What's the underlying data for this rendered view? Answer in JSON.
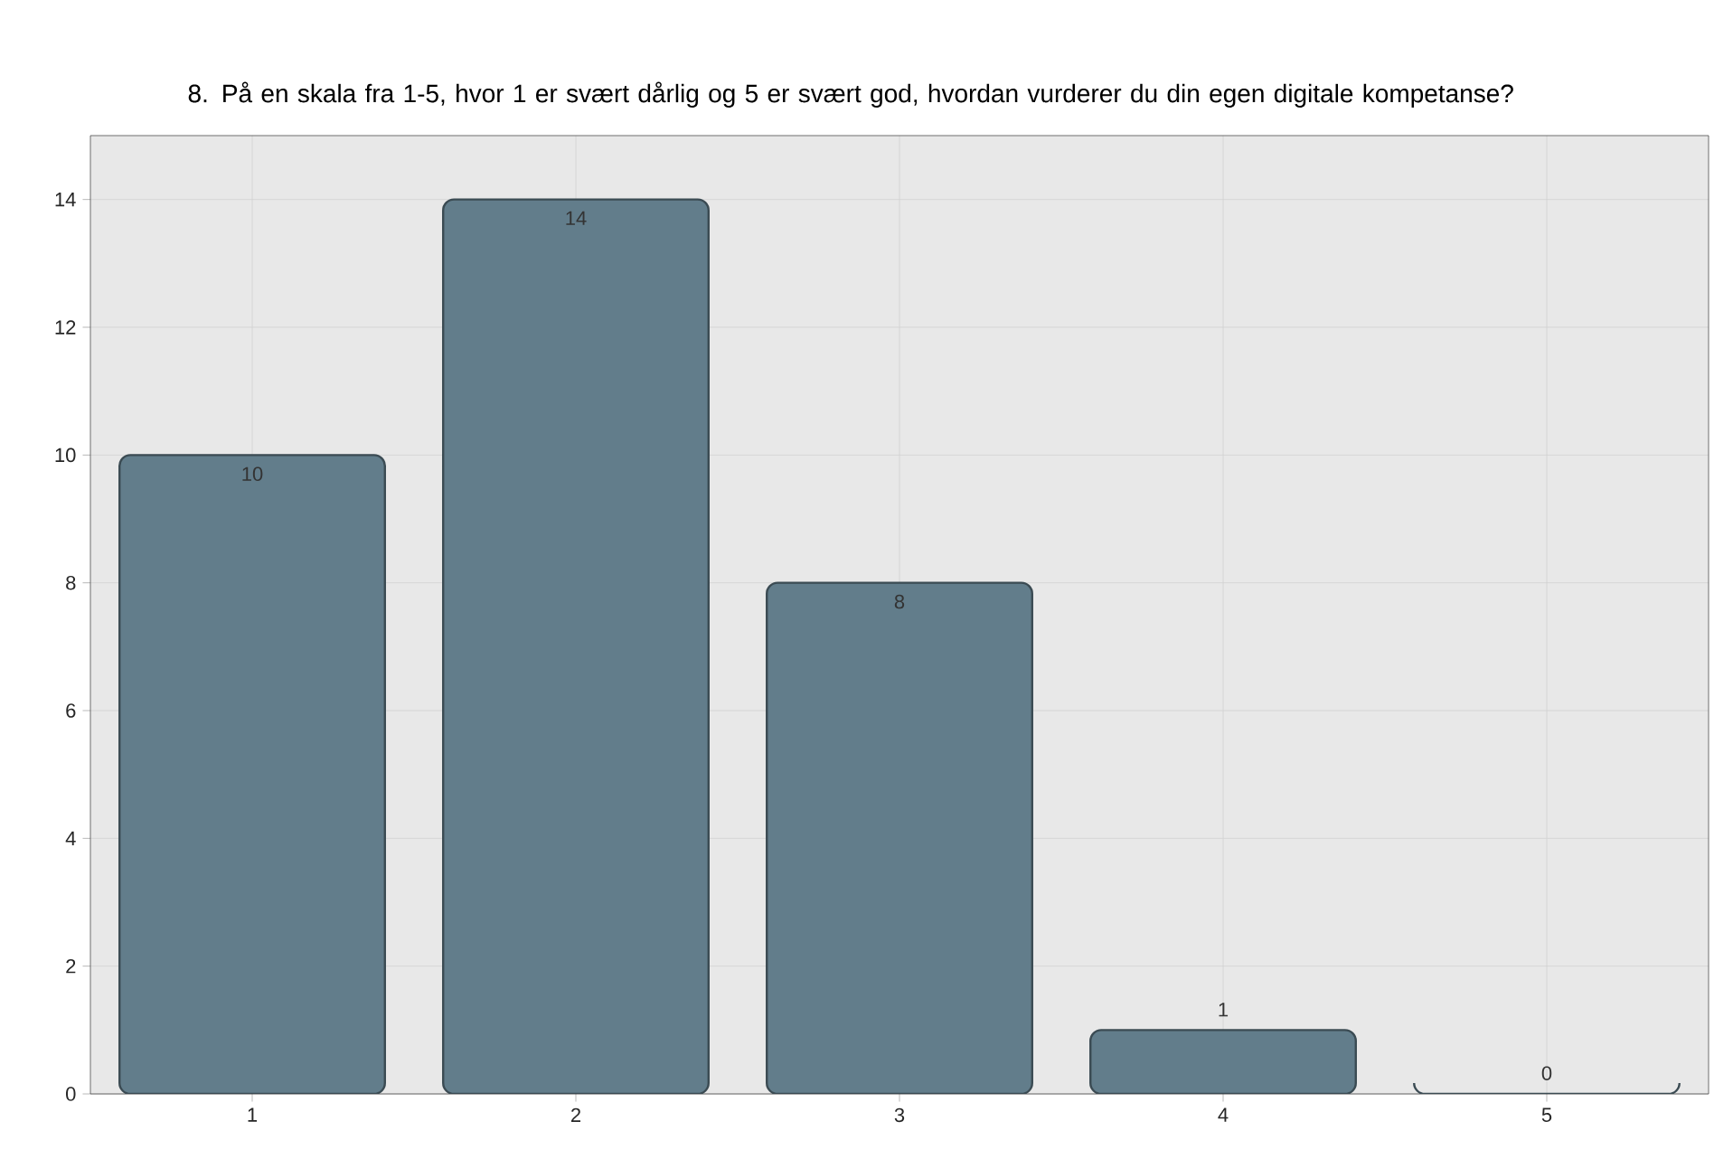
{
  "chart_data": {
    "type": "bar",
    "title": "8. På en skala fra 1-5, hvor 1 er svært dårlig og 5 er svært god, hvordan vurderer du din egen digitale kompetanse?",
    "categories": [
      "1",
      "2",
      "3",
      "4",
      "5"
    ],
    "values": [
      10,
      14,
      8,
      1,
      0
    ],
    "color": "#627d8b",
    "ylim": [
      0,
      15
    ],
    "yticks": [
      0,
      2,
      4,
      6,
      8,
      10,
      12,
      14
    ],
    "grid": true,
    "data_labels": true
  }
}
